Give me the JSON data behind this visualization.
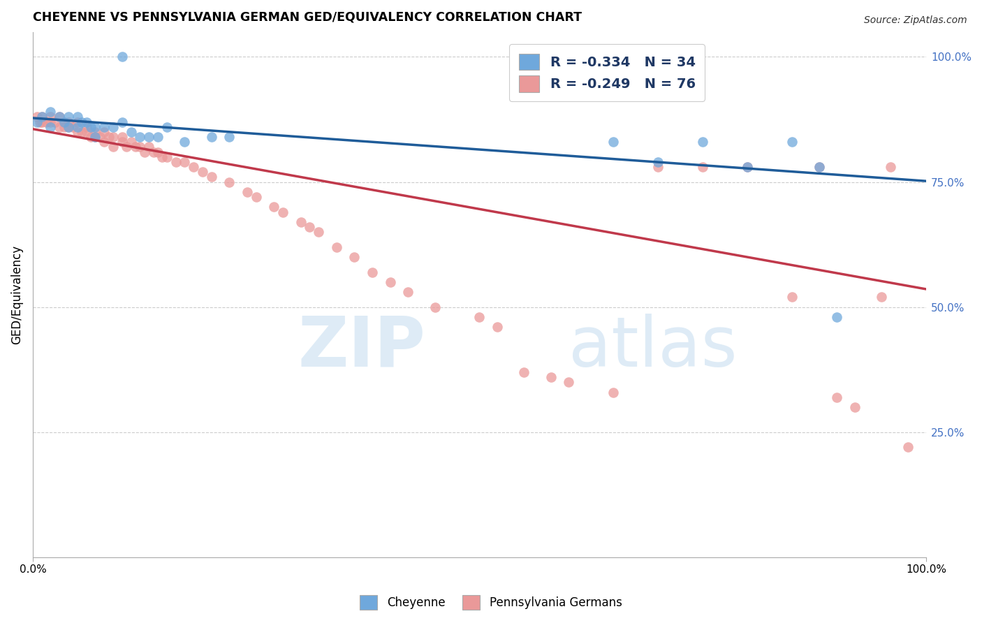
{
  "title": "CHEYENNE VS PENNSYLVANIA GERMAN GED/EQUIVALENCY CORRELATION CHART",
  "source": "Source: ZipAtlas.com",
  "ylabel": "GED/Equivalency",
  "xlim": [
    0.0,
    1.0
  ],
  "ylim": [
    0.0,
    1.05
  ],
  "legend_r_blue": "-0.334",
  "legend_n_blue": "34",
  "legend_r_pink": "-0.249",
  "legend_n_pink": "76",
  "blue_color": "#6fa8dc",
  "pink_color": "#ea9999",
  "trend_blue_color": "#1f5c99",
  "trend_pink_color": "#c0394b",
  "legend_label_blue": "Cheyenne",
  "legend_label_pink": "Pennsylvania Germans",
  "blue_trend_start": 0.878,
  "blue_trend_end": 0.752,
  "pink_trend_start": 0.856,
  "pink_trend_end": 0.536,
  "blue_x": [
    0.005,
    0.01,
    0.02,
    0.02,
    0.03,
    0.035,
    0.04,
    0.04,
    0.05,
    0.05,
    0.055,
    0.06,
    0.065,
    0.07,
    0.07,
    0.08,
    0.09,
    0.1,
    0.1,
    0.11,
    0.12,
    0.13,
    0.14,
    0.15,
    0.17,
    0.2,
    0.22,
    0.65,
    0.7,
    0.75,
    0.8,
    0.85,
    0.88,
    0.9
  ],
  "blue_y": [
    0.87,
    0.88,
    0.89,
    0.86,
    0.88,
    0.87,
    0.88,
    0.86,
    0.88,
    0.86,
    0.87,
    0.87,
    0.86,
    0.86,
    0.84,
    0.86,
    0.86,
    1.0,
    0.87,
    0.85,
    0.84,
    0.84,
    0.84,
    0.86,
    0.83,
    0.84,
    0.84,
    0.83,
    0.79,
    0.83,
    0.78,
    0.83,
    0.78,
    0.48
  ],
  "pink_x": [
    0.005,
    0.008,
    0.01,
    0.01,
    0.015,
    0.02,
    0.02,
    0.025,
    0.03,
    0.03,
    0.035,
    0.035,
    0.04,
    0.04,
    0.045,
    0.05,
    0.05,
    0.055,
    0.06,
    0.06,
    0.065,
    0.07,
    0.07,
    0.075,
    0.08,
    0.08,
    0.085,
    0.09,
    0.09,
    0.1,
    0.1,
    0.105,
    0.11,
    0.115,
    0.12,
    0.125,
    0.13,
    0.135,
    0.14,
    0.145,
    0.15,
    0.16,
    0.17,
    0.18,
    0.19,
    0.2,
    0.22,
    0.24,
    0.25,
    0.27,
    0.28,
    0.3,
    0.31,
    0.32,
    0.34,
    0.36,
    0.38,
    0.4,
    0.42,
    0.45,
    0.5,
    0.52,
    0.55,
    0.58,
    0.6,
    0.65,
    0.7,
    0.75,
    0.8,
    0.85,
    0.88,
    0.9,
    0.92,
    0.95,
    0.96,
    0.98
  ],
  "pink_y": [
    0.88,
    0.87,
    0.88,
    0.87,
    0.87,
    0.88,
    0.87,
    0.87,
    0.88,
    0.86,
    0.87,
    0.86,
    0.87,
    0.86,
    0.86,
    0.87,
    0.85,
    0.85,
    0.86,
    0.85,
    0.84,
    0.85,
    0.84,
    0.84,
    0.85,
    0.83,
    0.84,
    0.84,
    0.82,
    0.84,
    0.83,
    0.82,
    0.83,
    0.82,
    0.82,
    0.81,
    0.82,
    0.81,
    0.81,
    0.8,
    0.8,
    0.79,
    0.79,
    0.78,
    0.77,
    0.76,
    0.75,
    0.73,
    0.72,
    0.7,
    0.69,
    0.67,
    0.66,
    0.65,
    0.62,
    0.6,
    0.57,
    0.55,
    0.53,
    0.5,
    0.48,
    0.46,
    0.37,
    0.36,
    0.35,
    0.33,
    0.78,
    0.78,
    0.78,
    0.52,
    0.78,
    0.32,
    0.3,
    0.52,
    0.78,
    0.22
  ]
}
